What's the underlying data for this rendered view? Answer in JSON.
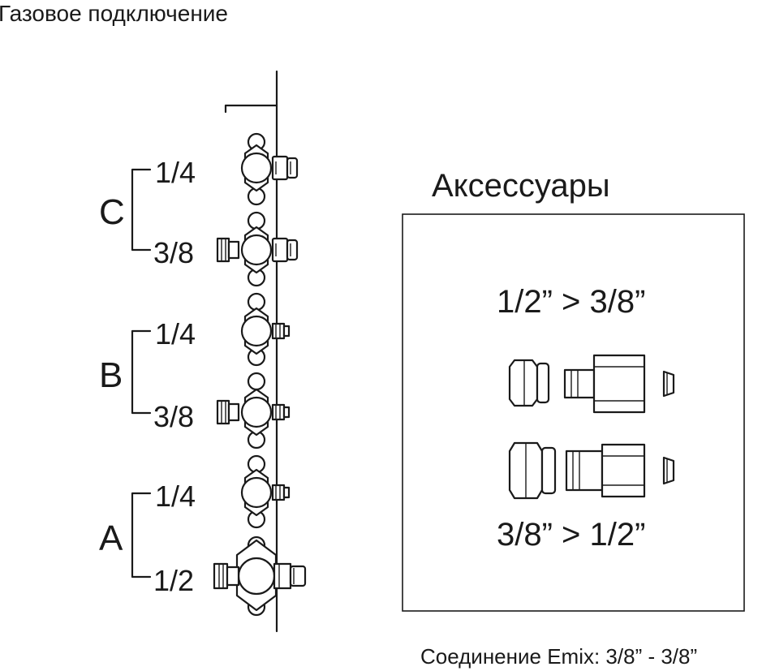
{
  "title": "Газовое подключение",
  "accessories": {
    "heading": "Аксессуары",
    "top_label": "1/2” > 3/8”",
    "bottom_label": "3/8” > 1/2”"
  },
  "groups": [
    {
      "letter": "C",
      "upper": "1/4",
      "lower": "3/8"
    },
    {
      "letter": "B",
      "upper": "1/4",
      "lower": "3/8"
    },
    {
      "letter": "A",
      "upper": "1/4",
      "lower": "1/2"
    }
  ],
  "footer": "Соединение Emix: 3/8” - 3/8”"
}
